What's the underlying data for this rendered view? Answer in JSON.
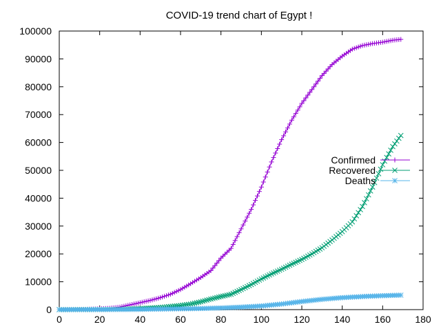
{
  "chart_data": {
    "type": "line",
    "title": "COVID-19 trend chart of Egypt !",
    "xlabel": "",
    "ylabel": "",
    "xlim": [
      0,
      180
    ],
    "ylim": [
      0,
      100000
    ],
    "xticks": [
      0,
      20,
      40,
      60,
      80,
      100,
      120,
      140,
      160,
      180
    ],
    "yticks": [
      0,
      10000,
      20000,
      30000,
      40000,
      50000,
      60000,
      70000,
      80000,
      90000,
      100000
    ],
    "grid": false,
    "legend_position": "right",
    "series": [
      {
        "name": "Confirmed",
        "color": "#9400d3",
        "marker": "plus",
        "points": [
          [
            0,
            0
          ],
          [
            10,
            50
          ],
          [
            20,
            300
          ],
          [
            25,
            500
          ],
          [
            30,
            900
          ],
          [
            35,
            1700
          ],
          [
            40,
            2500
          ],
          [
            45,
            3300
          ],
          [
            50,
            4300
          ],
          [
            55,
            5500
          ],
          [
            60,
            7200
          ],
          [
            65,
            9300
          ],
          [
            70,
            11500
          ],
          [
            75,
            14000
          ],
          [
            80,
            18500
          ],
          [
            85,
            22000
          ],
          [
            90,
            29000
          ],
          [
            95,
            36000
          ],
          [
            100,
            44000
          ],
          [
            105,
            53000
          ],
          [
            110,
            61000
          ],
          [
            115,
            68000
          ],
          [
            120,
            74000
          ],
          [
            125,
            79000
          ],
          [
            130,
            84000
          ],
          [
            135,
            88000
          ],
          [
            140,
            91000
          ],
          [
            145,
            93500
          ],
          [
            150,
            94800
          ],
          [
            155,
            95500
          ],
          [
            160,
            96000
          ],
          [
            165,
            96700
          ],
          [
            169,
            97000
          ]
        ]
      },
      {
        "name": "Recovered",
        "color": "#009e73",
        "marker": "cross",
        "points": [
          [
            0,
            0
          ],
          [
            20,
            50
          ],
          [
            30,
            150
          ],
          [
            40,
            400
          ],
          [
            50,
            800
          ],
          [
            60,
            1500
          ],
          [
            65,
            2000
          ],
          [
            70,
            2800
          ],
          [
            75,
            3800
          ],
          [
            80,
            4700
          ],
          [
            85,
            5500
          ],
          [
            90,
            7200
          ],
          [
            95,
            9000
          ],
          [
            100,
            11000
          ],
          [
            105,
            12800
          ],
          [
            110,
            14500
          ],
          [
            115,
            16300
          ],
          [
            120,
            18000
          ],
          [
            125,
            20000
          ],
          [
            130,
            22200
          ],
          [
            135,
            25000
          ],
          [
            140,
            28000
          ],
          [
            145,
            31500
          ],
          [
            150,
            37000
          ],
          [
            155,
            44000
          ],
          [
            160,
            52000
          ],
          [
            165,
            58500
          ],
          [
            169,
            62500
          ]
        ]
      },
      {
        "name": "Deaths",
        "color": "#56b4e9",
        "marker": "star",
        "points": [
          [
            0,
            0
          ],
          [
            30,
            50
          ],
          [
            40,
            100
          ],
          [
            50,
            200
          ],
          [
            60,
            300
          ],
          [
            70,
            400
          ],
          [
            80,
            600
          ],
          [
            90,
            900
          ],
          [
            100,
            1300
          ],
          [
            110,
            2000
          ],
          [
            120,
            2900
          ],
          [
            130,
            3700
          ],
          [
            140,
            4300
          ],
          [
            150,
            4700
          ],
          [
            160,
            5000
          ],
          [
            169,
            5200
          ]
        ]
      }
    ]
  }
}
